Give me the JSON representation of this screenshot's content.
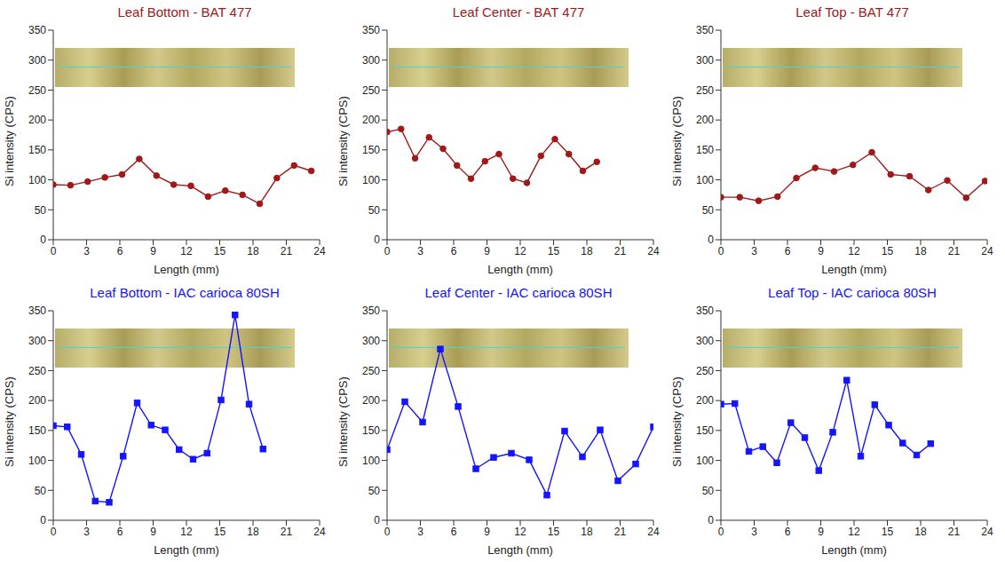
{
  "chart_data": [
    {
      "type": "line",
      "title": "Leaf Bottom - BAT 477",
      "xlabel": "Length (mm)",
      "ylabel": "Si intensity (CPS)",
      "color": "#a11818",
      "marker": "circle",
      "xlim": [
        0,
        24
      ],
      "xticks": [
        0,
        3,
        6,
        9,
        12,
        15,
        18,
        21,
        24
      ],
      "ylim": [
        0,
        350
      ],
      "yticks": [
        0,
        50,
        100,
        150,
        200,
        250,
        300,
        350
      ],
      "x": [
        0,
        1.55,
        3.1,
        4.65,
        6.2,
        7.75,
        9.3,
        10.85,
        12.4,
        13.95,
        15.5,
        17.05,
        18.6,
        20.15,
        21.7,
        23.25
      ],
      "values": [
        92,
        91,
        97,
        104,
        109,
        135,
        107,
        92,
        90,
        72,
        82,
        75,
        60,
        103,
        124,
        115
      ]
    },
    {
      "type": "line",
      "title": "Leaf Center - BAT 477",
      "xlabel": "Length (mm)",
      "ylabel": "Si intensity (CPS)",
      "color": "#a11818",
      "marker": "circle",
      "xlim": [
        0,
        24
      ],
      "xticks": [
        0,
        3,
        6,
        9,
        12,
        15,
        18,
        21,
        24
      ],
      "ylim": [
        0,
        350
      ],
      "yticks": [
        0,
        50,
        100,
        150,
        200,
        250,
        300,
        350
      ],
      "x": [
        0,
        1.26,
        2.52,
        3.78,
        5.04,
        6.3,
        7.56,
        8.82,
        10.08,
        11.34,
        12.6,
        13.86,
        15.12,
        16.38,
        17.64,
        18.9
      ],
      "values": [
        180,
        185,
        136,
        171,
        152,
        124,
        102,
        131,
        143,
        102,
        95,
        140,
        168,
        143,
        115,
        130
      ]
    },
    {
      "type": "line",
      "title": "Leaf Top - BAT 477",
      "xlabel": "Length (mm)",
      "ylabel": "Si intensity (CPS)",
      "color": "#a11818",
      "marker": "circle",
      "xlim": [
        0,
        24
      ],
      "xticks": [
        0,
        3,
        6,
        9,
        12,
        15,
        18,
        21,
        24
      ],
      "ylim": [
        0,
        350
      ],
      "yticks": [
        0,
        50,
        100,
        150,
        200,
        250,
        300,
        350
      ],
      "x": [
        0,
        1.7,
        3.4,
        5.1,
        6.8,
        8.5,
        10.2,
        11.9,
        13.6,
        15.3,
        17,
        18.7,
        20.4,
        22.1,
        23.8
      ],
      "values": [
        71,
        71,
        65,
        72,
        103,
        120,
        114,
        125,
        146,
        109,
        106,
        83,
        99,
        70,
        98
      ]
    },
    {
      "type": "line",
      "title": "Leaf Bottom - IAC carioca 80SH",
      "xlabel": "Length (mm)",
      "ylabel": "Si intensity (CPS)",
      "color": "#1414ff",
      "marker": "square",
      "xlim": [
        0,
        24
      ],
      "xticks": [
        0,
        3,
        6,
        9,
        12,
        15,
        18,
        21,
        24
      ],
      "ylim": [
        0,
        350
      ],
      "yticks": [
        0,
        50,
        100,
        150,
        200,
        250,
        300,
        350
      ],
      "x": [
        0,
        1.26,
        2.52,
        3.78,
        5.04,
        6.3,
        7.56,
        8.82,
        10.08,
        11.34,
        12.6,
        13.86,
        15.12,
        16.38,
        17.64,
        18.9
      ],
      "values": [
        158,
        156,
        110,
        32,
        30,
        107,
        196,
        159,
        151,
        118,
        102,
        112,
        201,
        343,
        194,
        119
      ]
    },
    {
      "type": "line",
      "title": "Leaf Center - IAC carioca 80SH",
      "xlabel": "Length (mm)",
      "ylabel": "Si intensity (CPS)",
      "color": "#1414ff",
      "marker": "square",
      "xlim": [
        0,
        24
      ],
      "xticks": [
        0,
        3,
        6,
        9,
        12,
        15,
        18,
        21,
        24
      ],
      "ylim": [
        0,
        350
      ],
      "yticks": [
        0,
        50,
        100,
        150,
        200,
        250,
        300,
        350
      ],
      "x": [
        0,
        1.6,
        3.2,
        4.8,
        6.4,
        8,
        9.6,
        11.2,
        12.8,
        14.4,
        16,
        17.6,
        19.2,
        20.8,
        22.4,
        24
      ],
      "values": [
        118,
        198,
        164,
        286,
        190,
        86,
        105,
        112,
        101,
        42,
        149,
        106,
        151,
        66,
        94,
        156
      ]
    },
    {
      "type": "line",
      "title": "Leaf Top - IAC carioca 80SH",
      "xlabel": "Length (mm)",
      "ylabel": "Si intensity (CPS)",
      "color": "#1414ff",
      "marker": "square",
      "xlim": [
        0,
        24
      ],
      "xticks": [
        0,
        3,
        6,
        9,
        12,
        15,
        18,
        21,
        24
      ],
      "ylim": [
        0,
        350
      ],
      "yticks": [
        0,
        50,
        100,
        150,
        200,
        250,
        300,
        350
      ],
      "x": [
        0,
        1.26,
        2.52,
        3.78,
        5.04,
        6.3,
        7.56,
        8.82,
        10.08,
        11.34,
        12.6,
        13.86,
        15.12,
        16.38,
        17.64,
        18.9
      ],
      "values": [
        194,
        195,
        115,
        123,
        96,
        163,
        138,
        83,
        147,
        234,
        107,
        193,
        159,
        129,
        109,
        128
      ]
    }
  ]
}
